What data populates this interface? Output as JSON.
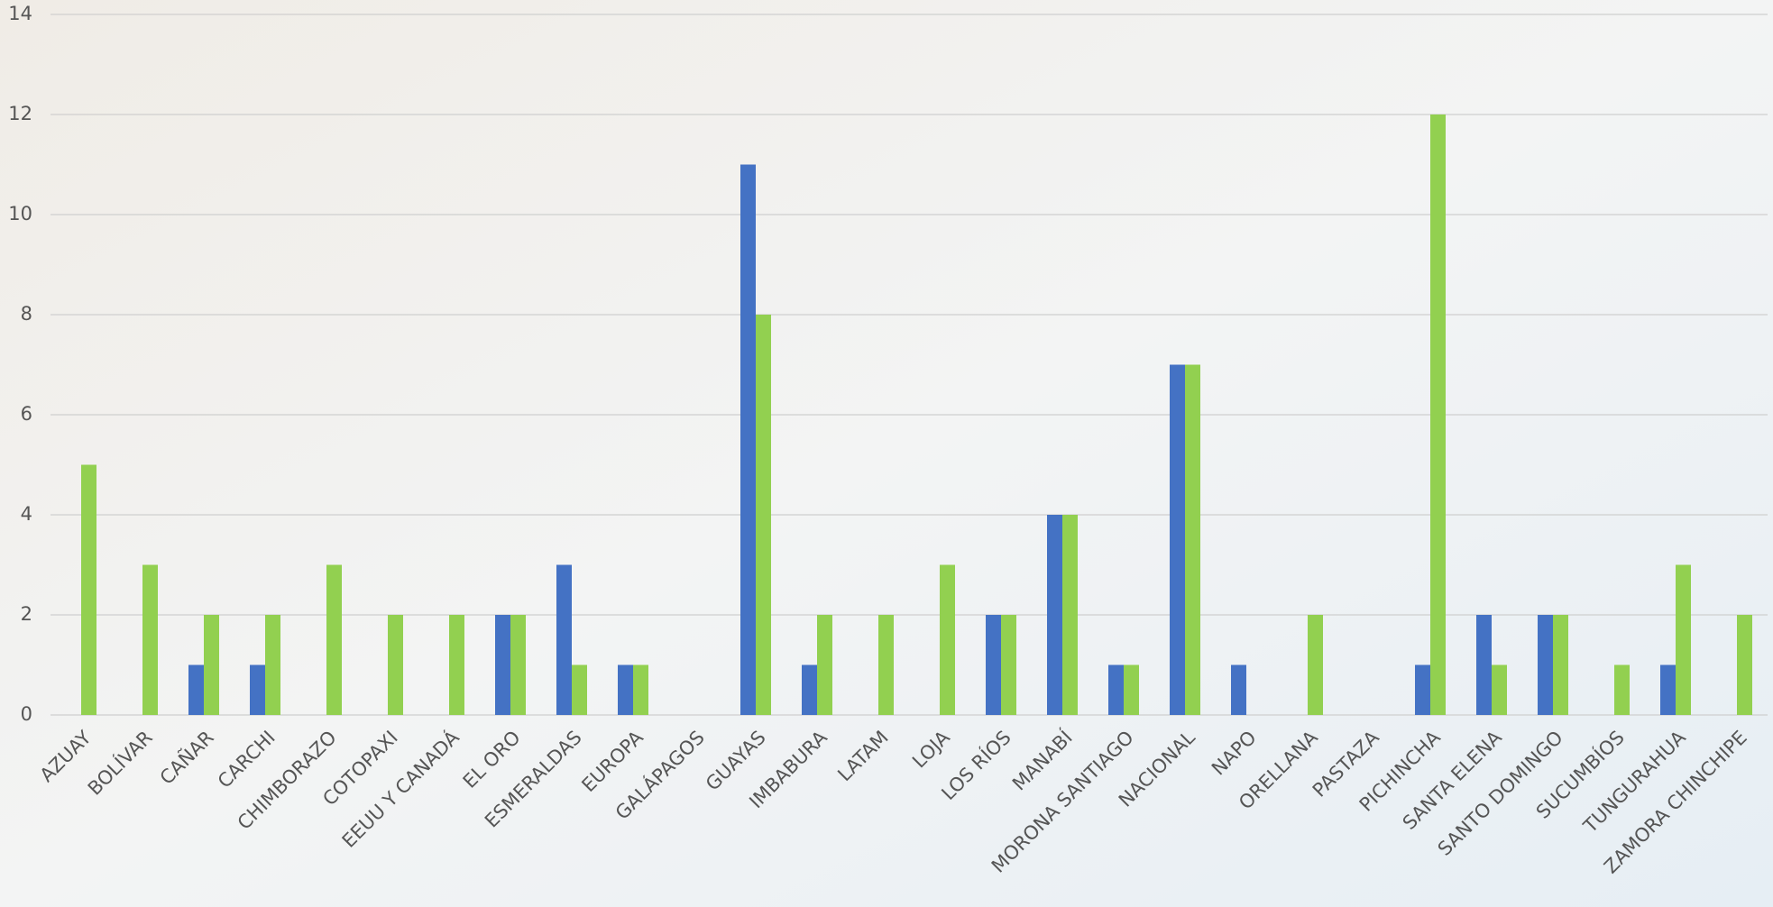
{
  "chart_data": {
    "type": "bar",
    "categories": [
      "AZUAY",
      "BOLÍVAR",
      "CAÑAR",
      "CARCHI",
      "CHIMBORAZO",
      "COTOPAXI",
      "EEUU Y CANADÁ",
      "EL ORO",
      "ESMERALDAS",
      "EUROPA",
      "GALÁPAGOS",
      "GUAYAS",
      "IMBABURA",
      "LATAM",
      "LOJA",
      "LOS RÍOS",
      "MANABÍ",
      "MORONA SANTIAGO",
      "NACIONAL",
      "NAPO",
      "ORELLANA",
      "PASTAZA",
      "PICHINCHA",
      "SANTA ELENA",
      "SANTO DOMINGO",
      "SUCUMBÍOS",
      "TUNGURAHUA",
      "ZAMORA CHINCHIPE"
    ],
    "series": [
      {
        "color": "#4472c4",
        "values": [
          0,
          0,
          1,
          1,
          0,
          0,
          0,
          2,
          3,
          1,
          0,
          11,
          1,
          0,
          0,
          2,
          4,
          1,
          7,
          1,
          0,
          0,
          1,
          2,
          2,
          0,
          1,
          0
        ]
      },
      {
        "color": "#92d050",
        "values": [
          5,
          3,
          2,
          2,
          3,
          2,
          2,
          2,
          1,
          1,
          0,
          8,
          2,
          2,
          3,
          2,
          4,
          1,
          7,
          0,
          2,
          0,
          12,
          1,
          2,
          1,
          3,
          2
        ]
      }
    ],
    "ylim": [
      0,
      14
    ],
    "yticks": [
      0,
      2,
      4,
      6,
      8,
      10,
      12,
      14
    ],
    "grid": true
  }
}
